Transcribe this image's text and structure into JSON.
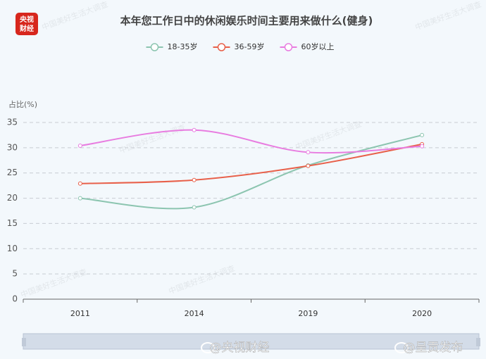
{
  "chart_data": {
    "type": "line",
    "title": "本年您工作日中的休闲娱乐时间主要用来做什么(健身)",
    "y_label": "占比(%)",
    "categories": [
      "2011",
      "2014",
      "2019",
      "2020"
    ],
    "series": [
      {
        "name": "18-35岁",
        "color": "#8cc5b0",
        "values": [
          20,
          18.2,
          26.5,
          32.5
        ]
      },
      {
        "name": "36-59岁",
        "color": "#e8604a",
        "values": [
          22.9,
          23.6,
          26.4,
          30.7
        ]
      },
      {
        "name": "60岁以上",
        "color": "#e87ce0",
        "values": [
          30.4,
          33.5,
          29.1,
          30.3
        ]
      }
    ],
    "ylim": [
      0,
      35
    ],
    "yticks": [
      0,
      5,
      10,
      15,
      20,
      25,
      30,
      35
    ],
    "grid": true,
    "legend": "top",
    "smooth": true
  },
  "logo": [
    "央视",
    "财经"
  ],
  "watermark": "中国美好生活大调查",
  "credits": [
    "@央视财经",
    "@呈贡发布"
  ]
}
